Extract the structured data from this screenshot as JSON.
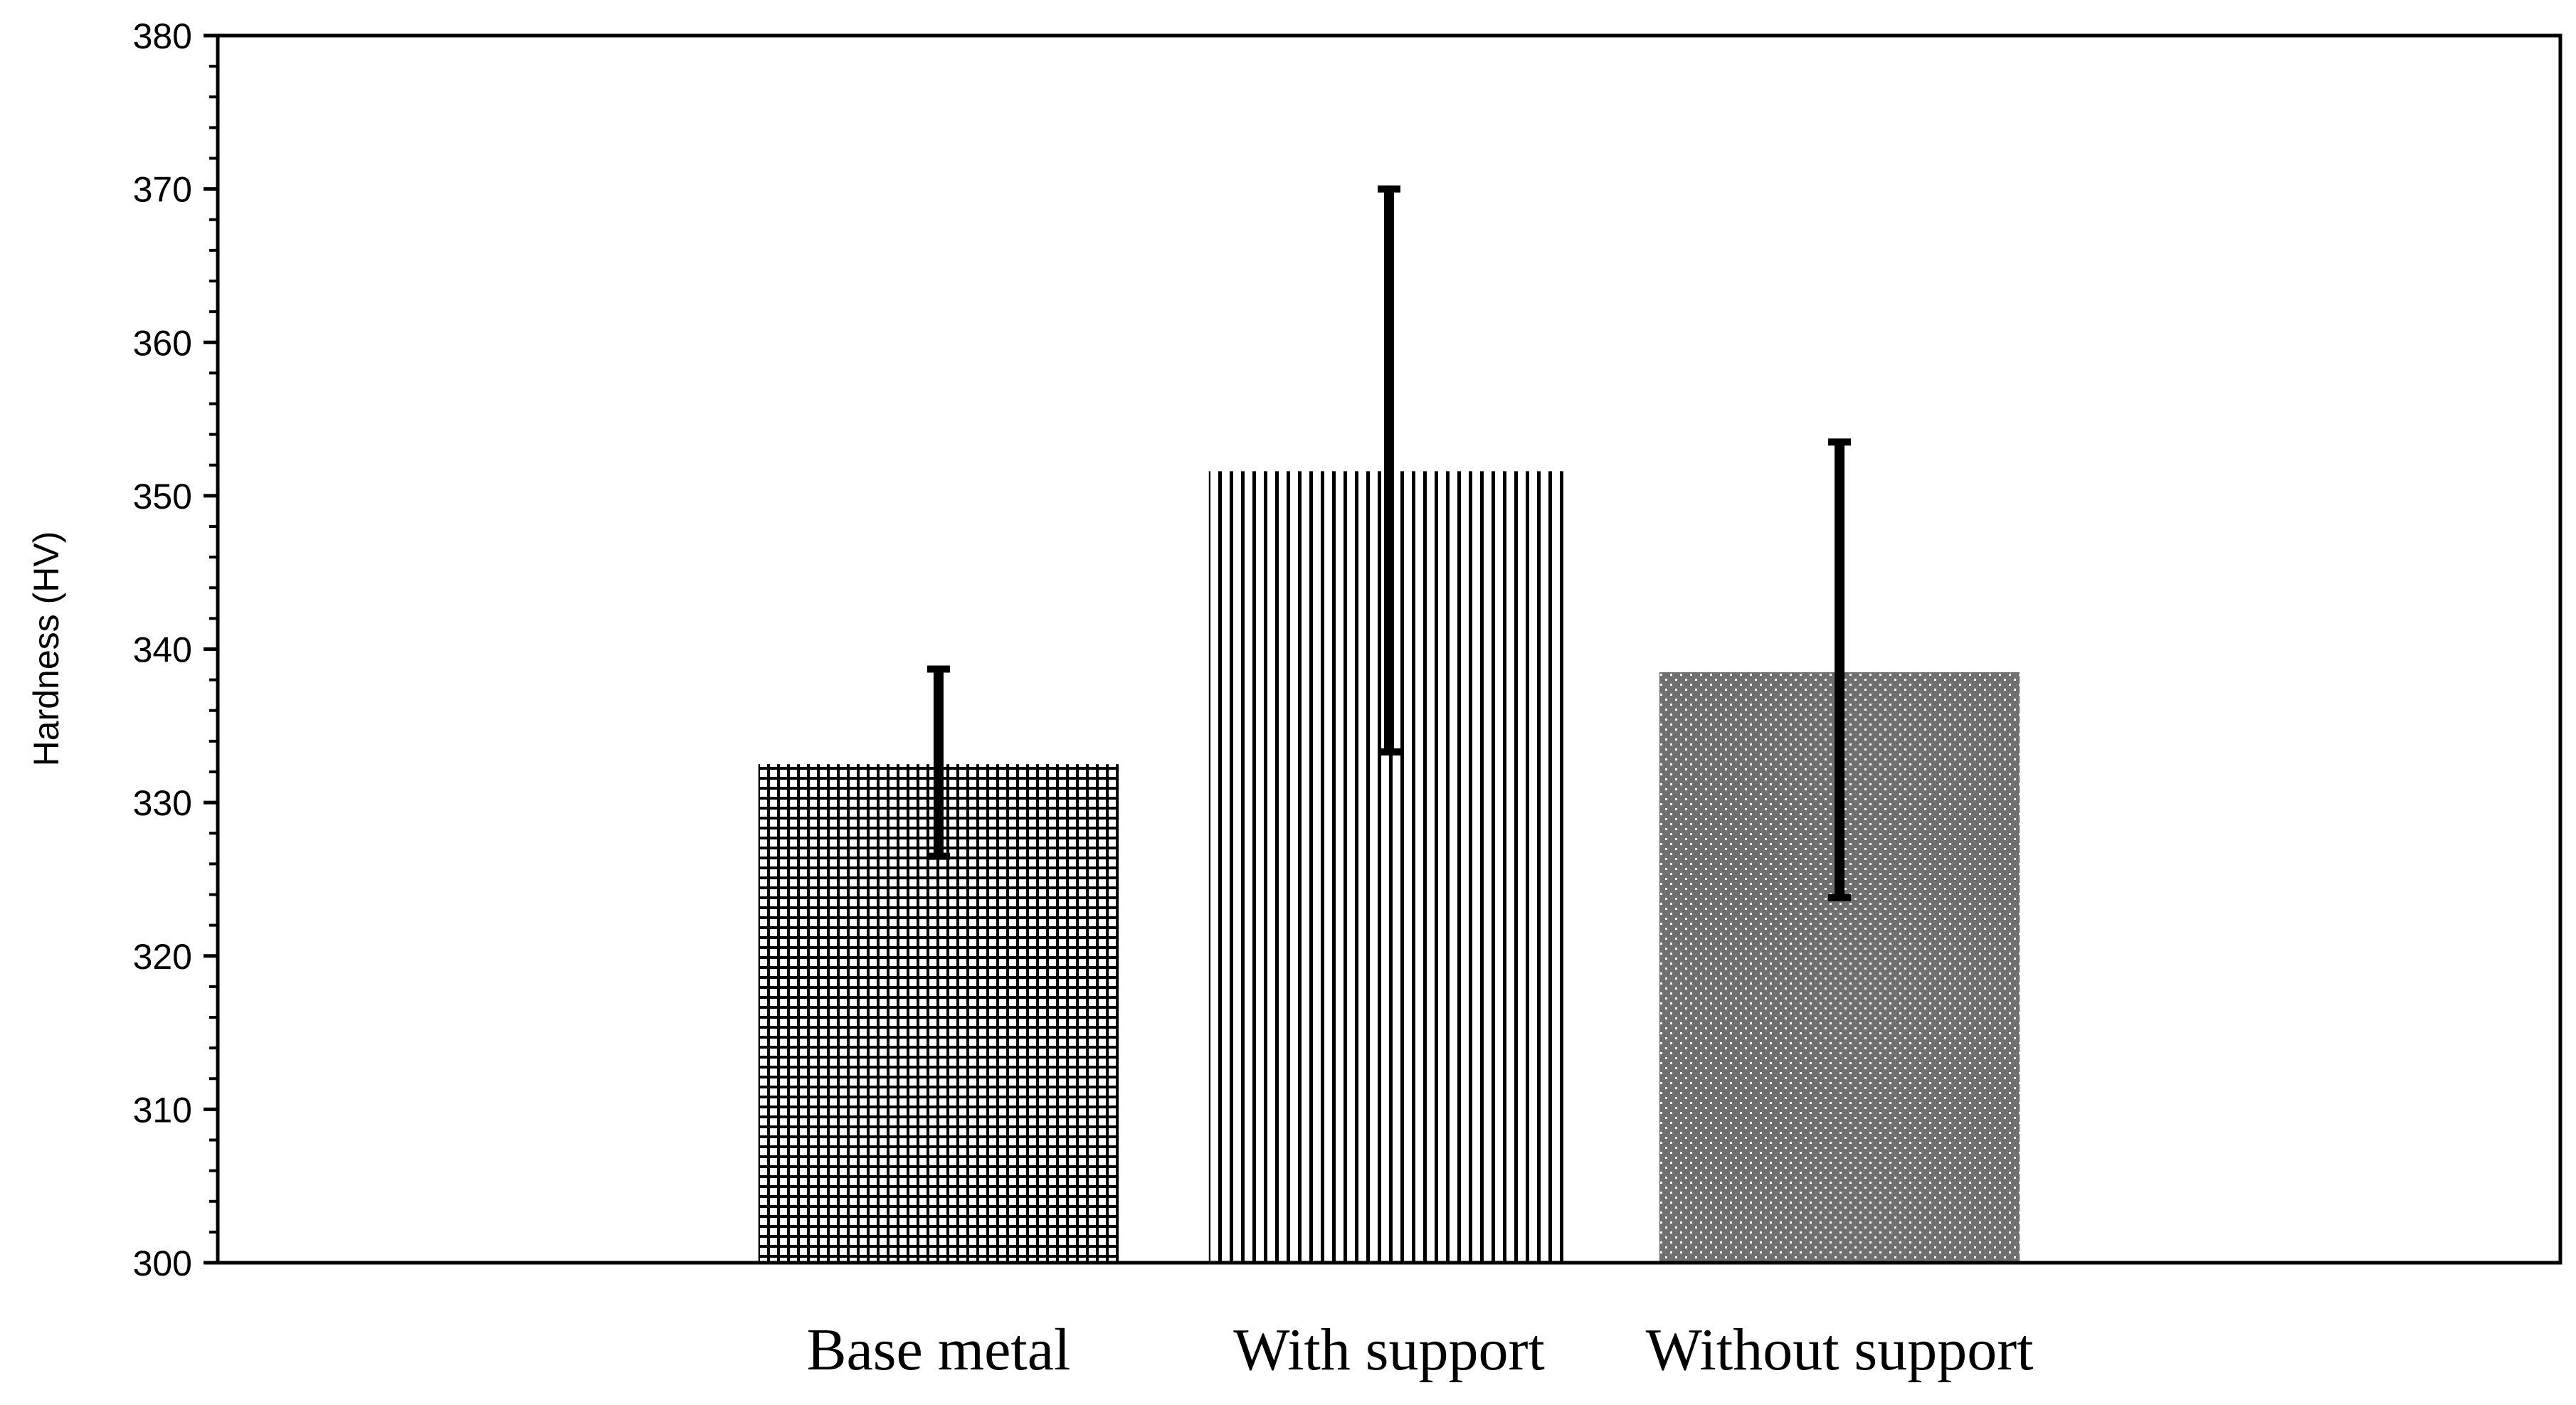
{
  "chart_data": {
    "type": "bar",
    "title": "",
    "xlabel": "",
    "ylabel": "Hardness (HV)",
    "ylim": [
      300,
      380
    ],
    "yticks": [
      "300",
      "310",
      "320",
      "330",
      "340",
      "350",
      "360",
      "370",
      "380"
    ],
    "minor_ticks_per_major": 5,
    "grid": false,
    "legend": "none",
    "categories": [
      "Base metal",
      "With support",
      "Without support"
    ],
    "series": [
      {
        "values": [
          332.5,
          351.6,
          338.5
        ],
        "error_low": [
          326.5,
          333.3,
          323.8
        ],
        "error_high": [
          338.7,
          370.0,
          353.5
        ],
        "patterns": [
          "grid-hatch",
          "vertical-lines",
          "dotted-dark"
        ]
      }
    ],
    "colors": {
      "bar_foreground": "#000000",
      "background": "#ffffff",
      "dotted_fill": "#707070"
    }
  }
}
